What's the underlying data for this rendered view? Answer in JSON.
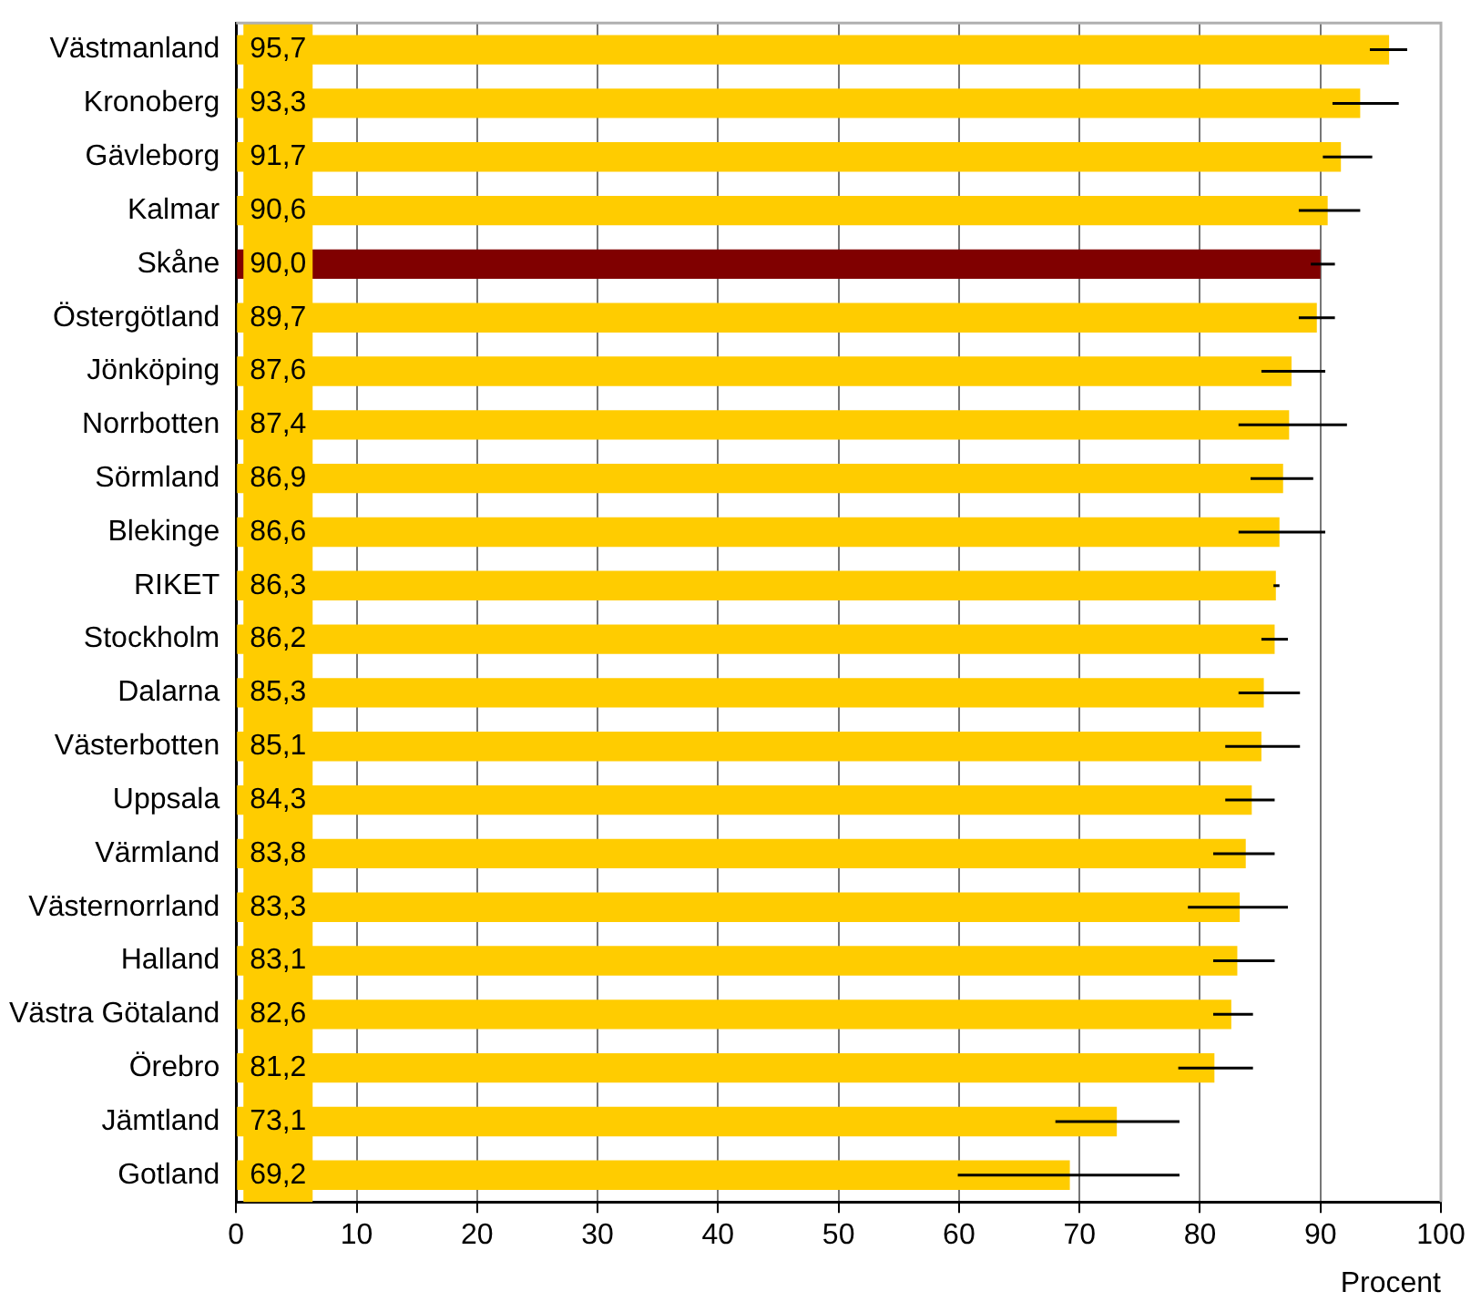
{
  "chart_data": {
    "type": "bar",
    "orientation": "horizontal",
    "xlabel": "Procent",
    "categories": [
      "Västmanland",
      "Kronoberg",
      "Gävleborg",
      "Kalmar",
      "Skåne",
      "Östergötland",
      "Jönköping",
      "Norrbotten",
      "Sörmland",
      "Blekinge",
      "RIKET",
      "Stockholm",
      "Dalarna",
      "Västerbotten",
      "Uppsala",
      "Värmland",
      "Västernorrland",
      "Halland",
      "Västra Götaland",
      "Örebro",
      "Jämtland",
      "Gotland"
    ],
    "values": [
      95.7,
      93.3,
      91.7,
      90.6,
      90.0,
      89.7,
      87.6,
      87.4,
      86.9,
      86.6,
      86.3,
      86.2,
      85.3,
      85.1,
      84.3,
      83.8,
      83.3,
      83.1,
      82.6,
      81.2,
      73.1,
      69.2
    ],
    "colors": [
      "#ffcc00",
      "#ffcc00",
      "#ffcc00",
      "#ffcc00",
      "#800000",
      "#ffcc00",
      "#ffcc00",
      "#ffcc00",
      "#ffcc00",
      "#ffcc00",
      "#ffcc00",
      "#ffcc00",
      "#ffcc00",
      "#ffcc00",
      "#ffcc00",
      "#ffcc00",
      "#ffcc00",
      "#ffcc00",
      "#ffcc00",
      "#ffcc00",
      "#ffcc00",
      "#ffcc00"
    ],
    "errors": [
      [
        94.1,
        97.2
      ],
      [
        91.0,
        96.5
      ],
      [
        90.2,
        94.3
      ],
      [
        88.2,
        93.3
      ],
      [
        89.2,
        91.2
      ],
      [
        88.2,
        91.2
      ],
      [
        85.1,
        90.4
      ],
      [
        83.2,
        92.2
      ],
      [
        84.2,
        89.4
      ],
      [
        83.2,
        90.4
      ],
      [
        86.1,
        86.6
      ],
      [
        85.1,
        87.3
      ],
      [
        83.2,
        88.3
      ],
      [
        82.1,
        88.3
      ],
      [
        82.1,
        86.2
      ],
      [
        81.1,
        86.2
      ],
      [
        79.0,
        87.3
      ],
      [
        81.1,
        86.2
      ],
      [
        81.1,
        84.4
      ],
      [
        78.2,
        84.4
      ],
      [
        68.0,
        78.3
      ],
      [
        59.9,
        78.3
      ]
    ],
    "value_labels": [
      "95,7",
      "93,3",
      "91,7",
      "90,6",
      "90,0",
      "89,7",
      "87,6",
      "87,4",
      "86,9",
      "86,6",
      "86,3",
      "86,2",
      "85,3",
      "85,1",
      "84,3",
      "83,8",
      "83,3",
      "83,1",
      "82,6",
      "81,2",
      "73,1",
      "69,2"
    ],
    "xlim": [
      0,
      100
    ],
    "xticks": [
      0,
      10,
      20,
      30,
      40,
      50,
      60,
      70,
      80,
      90,
      100
    ],
    "grid": "x",
    "legend": false
  }
}
